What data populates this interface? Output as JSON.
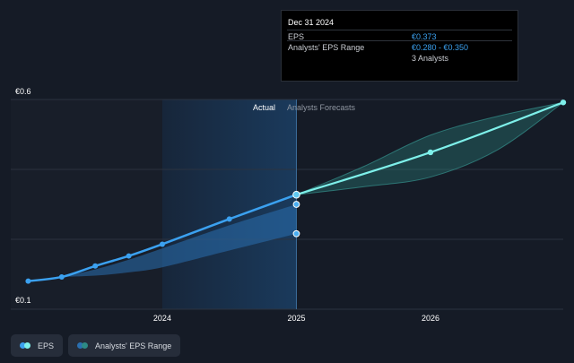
{
  "chart_data": {
    "type": "line",
    "y_ticks": [
      "€0.6",
      "€0.1"
    ],
    "ylim": [
      0.1,
      0.6
    ],
    "x_ticks": [
      {
        "label": "2024",
        "x": 2024.0
      },
      {
        "label": "2025",
        "x": 2025.0
      },
      {
        "label": "2026",
        "x": 2026.0
      }
    ],
    "xlim": [
      2022.87,
      2026.99
    ],
    "divider_x": 2025.0,
    "actual_shade_start": 2024.0,
    "region_labels": {
      "actual": "Actual",
      "forecast": "Analysts Forecasts"
    },
    "series": [
      {
        "name": "EPS",
        "color": "#3ba1f0",
        "points": [
          {
            "x": 2023.0,
            "y": 0.167
          },
          {
            "x": 2023.25,
            "y": 0.177
          },
          {
            "x": 2023.5,
            "y": 0.203
          },
          {
            "x": 2023.75,
            "y": 0.227
          },
          {
            "x": 2024.0,
            "y": 0.255
          },
          {
            "x": 2024.5,
            "y": 0.315
          },
          {
            "x": 2025.0,
            "y": 0.373
          }
        ]
      },
      {
        "name": "EPS",
        "color": "#7ef0ea",
        "forecast": true,
        "points": [
          {
            "x": 2025.0,
            "y": 0.373
          },
          {
            "x": 2026.0,
            "y": 0.474
          },
          {
            "x": 2026.99,
            "y": 0.593
          }
        ]
      }
    ],
    "range_band": {
      "name": "Analysts' EPS Range",
      "past": {
        "x": [
          2023.25,
          2023.5,
          2023.75,
          2024.0,
          2024.5,
          2025.0
        ],
        "low": [
          0.177,
          0.18,
          0.188,
          0.2,
          0.24,
          0.28
        ],
        "high": [
          0.177,
          0.195,
          0.218,
          0.245,
          0.3,
          0.35
        ]
      },
      "forecast": {
        "x": [
          2025.0,
          2025.5,
          2026.0,
          2026.5,
          2026.99
        ],
        "low": [
          0.373,
          0.392,
          0.415,
          0.48,
          0.593
        ],
        "high": [
          0.373,
          0.44,
          0.515,
          0.56,
          0.593
        ]
      }
    },
    "range_markers": [
      {
        "x": 2025.0,
        "y": 0.35
      },
      {
        "x": 2025.0,
        "y": 0.28
      }
    ],
    "grid": true
  },
  "tooltip": {
    "date": "Dec 31 2024",
    "rows": [
      {
        "label": "EPS",
        "value": "€0.373"
      },
      {
        "label": "Analysts' EPS Range",
        "value": "€0.280 - €0.350"
      },
      {
        "label": "",
        "value": "3 Analysts"
      }
    ]
  },
  "legend": [
    {
      "label": "EPS",
      "colors": [
        "#3ba1f0",
        "#7ef0ea"
      ]
    },
    {
      "label": "Analysts' EPS Range",
      "colors": [
        "#2a6fb0",
        "#2d8a85"
      ]
    }
  ]
}
